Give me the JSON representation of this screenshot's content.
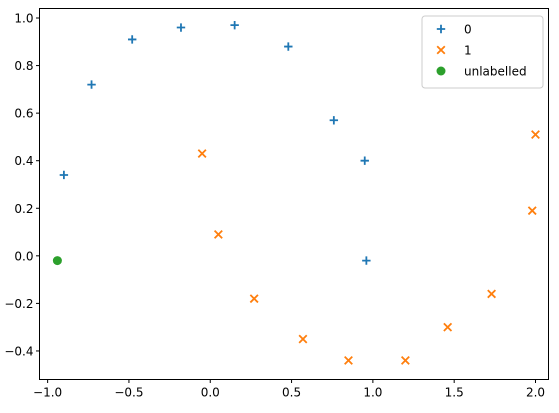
{
  "chart_data": {
    "type": "scatter",
    "title": "",
    "xlabel": "",
    "ylabel": "",
    "xlim": [
      -1.05,
      2.08
    ],
    "ylim": [
      -0.52,
      1.04
    ],
    "xticks": [
      -1.0,
      -0.5,
      0.0,
      0.5,
      1.0,
      1.5,
      2.0
    ],
    "xtick_labels": [
      "−1.0",
      "−0.5",
      "0.0",
      "0.5",
      "1.0",
      "1.5",
      "2.0"
    ],
    "yticks": [
      -0.4,
      -0.2,
      0.0,
      0.2,
      0.4,
      0.6,
      0.8,
      1.0
    ],
    "ytick_labels": [
      "−0.4",
      "−0.2",
      "0.0",
      "0.2",
      "0.4",
      "0.6",
      "0.8",
      "1.0"
    ],
    "grid": false,
    "legend_position": "top-right",
    "series": [
      {
        "name": "0",
        "marker": "plus",
        "color": "#1f77b4",
        "x": [
          -0.9,
          -0.73,
          -0.48,
          -0.18,
          0.15,
          0.48,
          0.76,
          0.95,
          0.96
        ],
        "y": [
          0.34,
          0.72,
          0.91,
          0.96,
          0.97,
          0.88,
          0.57,
          0.4,
          -0.02
        ]
      },
      {
        "name": "1",
        "marker": "x",
        "color": "#ff7f0e",
        "x": [
          -0.05,
          0.05,
          0.27,
          0.57,
          0.85,
          1.2,
          1.46,
          1.73,
          1.98,
          2.0
        ],
        "y": [
          0.43,
          0.09,
          -0.18,
          -0.35,
          -0.44,
          -0.44,
          -0.3,
          -0.16,
          0.19,
          0.51
        ]
      },
      {
        "name": "unlabelled",
        "marker": "circle",
        "color": "#2ca02c",
        "x": [
          -0.94
        ],
        "y": [
          -0.02
        ]
      }
    ]
  }
}
